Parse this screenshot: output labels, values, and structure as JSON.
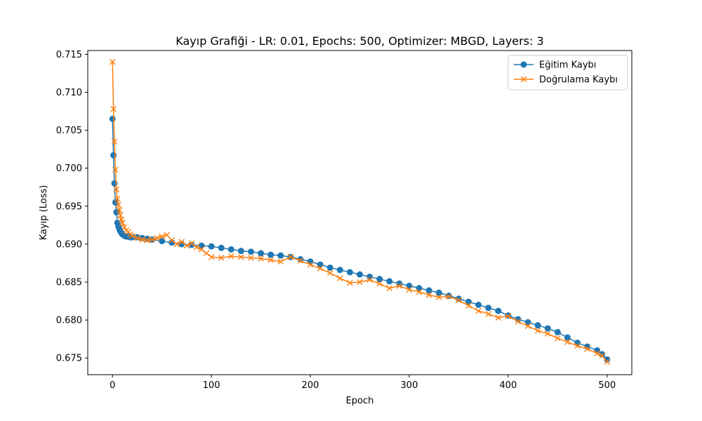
{
  "chart_data": {
    "type": "line",
    "title": "Kayıp Grafiği - LR: 0.01, Epochs: 500, Optimizer: MBGD, Layers: 3",
    "xlabel": "Epoch",
    "ylabel": "Kayıp (Loss)",
    "xlim": [
      -25,
      525
    ],
    "ylim": [
      0.6728,
      0.7155
    ],
    "xticks": [
      0,
      100,
      200,
      300,
      400,
      500
    ],
    "yticks": [
      0.675,
      0.68,
      0.685,
      0.69,
      0.695,
      0.7,
      0.705,
      0.71,
      0.715
    ],
    "xtick_labels": [
      "0",
      "100",
      "200",
      "300",
      "400",
      "500"
    ],
    "ytick_labels": [
      "0.675",
      "0.680",
      "0.685",
      "0.690",
      "0.695",
      "0.700",
      "0.705",
      "0.710",
      "0.715"
    ],
    "legend_position": "top-right",
    "grid": false,
    "series": [
      {
        "name": "Eğitim Kaybı",
        "marker": "circle",
        "color": "#1f77b4",
        "x": [
          0,
          1,
          2,
          3,
          4,
          5,
          6,
          7,
          8,
          9,
          10,
          12,
          14,
          16,
          18,
          20,
          25,
          30,
          35,
          40,
          50,
          60,
          70,
          80,
          90,
          100,
          110,
          120,
          130,
          140,
          150,
          160,
          170,
          180,
          190,
          200,
          210,
          220,
          230,
          240,
          250,
          260,
          270,
          280,
          290,
          300,
          310,
          320,
          330,
          340,
          350,
          360,
          370,
          380,
          390,
          400,
          410,
          420,
          430,
          440,
          450,
          460,
          470,
          480,
          490,
          495,
          500
        ],
        "y": [
          0.7065,
          0.7017,
          0.698,
          0.6955,
          0.6942,
          0.6928,
          0.6923,
          0.692,
          0.6917,
          0.6915,
          0.6913,
          0.6911,
          0.691,
          0.691,
          0.6909,
          0.6909,
          0.6909,
          0.6908,
          0.6907,
          0.6906,
          0.6904,
          0.6902,
          0.69,
          0.6899,
          0.6898,
          0.6897,
          0.6895,
          0.6893,
          0.6891,
          0.689,
          0.6888,
          0.6886,
          0.6885,
          0.6883,
          0.688,
          0.6877,
          0.6873,
          0.6869,
          0.6866,
          0.6863,
          0.686,
          0.6857,
          0.6854,
          0.6851,
          0.6848,
          0.6845,
          0.6842,
          0.6839,
          0.6836,
          0.6832,
          0.6828,
          0.6824,
          0.682,
          0.6816,
          0.6812,
          0.6806,
          0.6801,
          0.6797,
          0.6793,
          0.6789,
          0.6784,
          0.6777,
          0.677,
          0.6765,
          0.676,
          0.6755,
          0.6748
        ]
      },
      {
        "name": "Doğrulama Kaybı",
        "marker": "x",
        "color": "#ff7f0e",
        "x": [
          0,
          1,
          2,
          3,
          4,
          5,
          6,
          7,
          8,
          9,
          10,
          12,
          14,
          16,
          18,
          20,
          25,
          30,
          35,
          40,
          45,
          50,
          55,
          60,
          65,
          70,
          75,
          80,
          85,
          90,
          95,
          100,
          110,
          120,
          130,
          140,
          150,
          160,
          170,
          180,
          190,
          200,
          210,
          220,
          230,
          240,
          250,
          260,
          270,
          280,
          290,
          300,
          310,
          320,
          330,
          340,
          350,
          360,
          370,
          380,
          390,
          400,
          410,
          420,
          430,
          440,
          450,
          460,
          470,
          480,
          490,
          495,
          500
        ],
        "y": [
          0.714,
          0.7078,
          0.7035,
          0.6998,
          0.6972,
          0.696,
          0.6952,
          0.6945,
          0.6938,
          0.6932,
          0.6928,
          0.6922,
          0.6918,
          0.6916,
          0.6913,
          0.6911,
          0.6908,
          0.6906,
          0.6905,
          0.6906,
          0.6908,
          0.691,
          0.6912,
          0.6905,
          0.69,
          0.6903,
          0.6898,
          0.6901,
          0.6896,
          0.6893,
          0.6888,
          0.6883,
          0.6882,
          0.6884,
          0.6883,
          0.6882,
          0.6881,
          0.6879,
          0.6877,
          0.6883,
          0.6878,
          0.6873,
          0.6868,
          0.6862,
          0.6855,
          0.6849,
          0.685,
          0.6853,
          0.6848,
          0.6842,
          0.6845,
          0.684,
          0.6837,
          0.6833,
          0.683,
          0.6831,
          0.6826,
          0.6819,
          0.6812,
          0.6808,
          0.6803,
          0.6805,
          0.6798,
          0.6792,
          0.6786,
          0.6782,
          0.6776,
          0.6771,
          0.6766,
          0.6762,
          0.6756,
          0.6753,
          0.6745
        ]
      }
    ]
  }
}
